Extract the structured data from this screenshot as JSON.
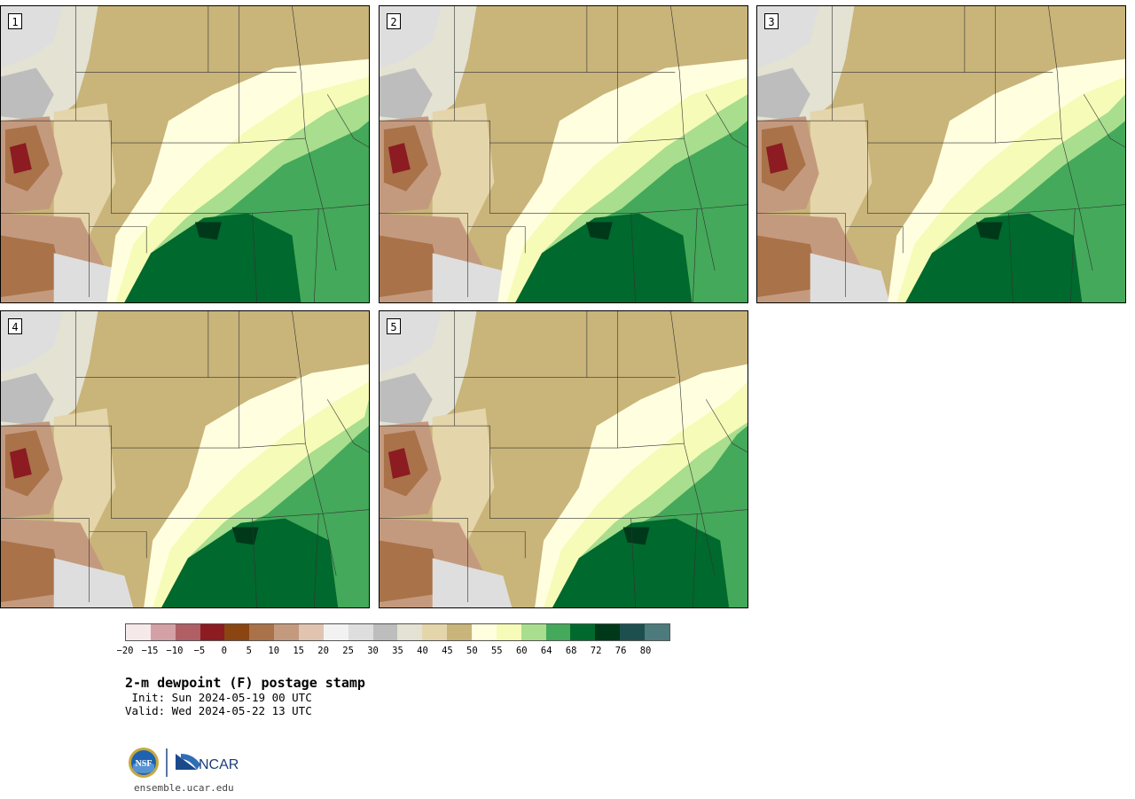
{
  "panels": [
    {
      "label": "1",
      "variant": 0
    },
    {
      "label": "2",
      "variant": 1
    },
    {
      "label": "3",
      "variant": 2
    },
    {
      "label": "4",
      "variant": 3
    },
    {
      "label": "5",
      "variant": 4
    }
  ],
  "colorbar": {
    "colors": [
      "#f5e9e9",
      "#d4a1a6",
      "#b05f65",
      "#8c1b22",
      "#8a4510",
      "#a97249",
      "#c49a7f",
      "#e0c4b0",
      "#f2f2f2",
      "#dedede",
      "#bdbdbd",
      "#e3e2d3",
      "#e5d5aa",
      "#c9b47a",
      "#ffffe0",
      "#f7fbb8",
      "#a8de8e",
      "#44a95a",
      "#00692d",
      "#00381a",
      "#1d4f4f",
      "#4d7b7d"
    ],
    "tick_labels": [
      "−20",
      "−15",
      "−10",
      "−5",
      "0",
      "5",
      "10",
      "15",
      "20",
      "25",
      "30",
      "35",
      "40",
      "45",
      "50",
      "55",
      "60",
      "64",
      "68",
      "72",
      "76",
      "80"
    ]
  },
  "title": "2-m dewpoint (F) postage stamp",
  "init": " Init: Sun 2024-05-19 00 UTC",
  "valid": "Valid: Wed 2024-05-22 13 UTC",
  "logos": {
    "left": "NSF",
    "right": "NCAR"
  },
  "site": "ensemble.ucar.edu"
}
